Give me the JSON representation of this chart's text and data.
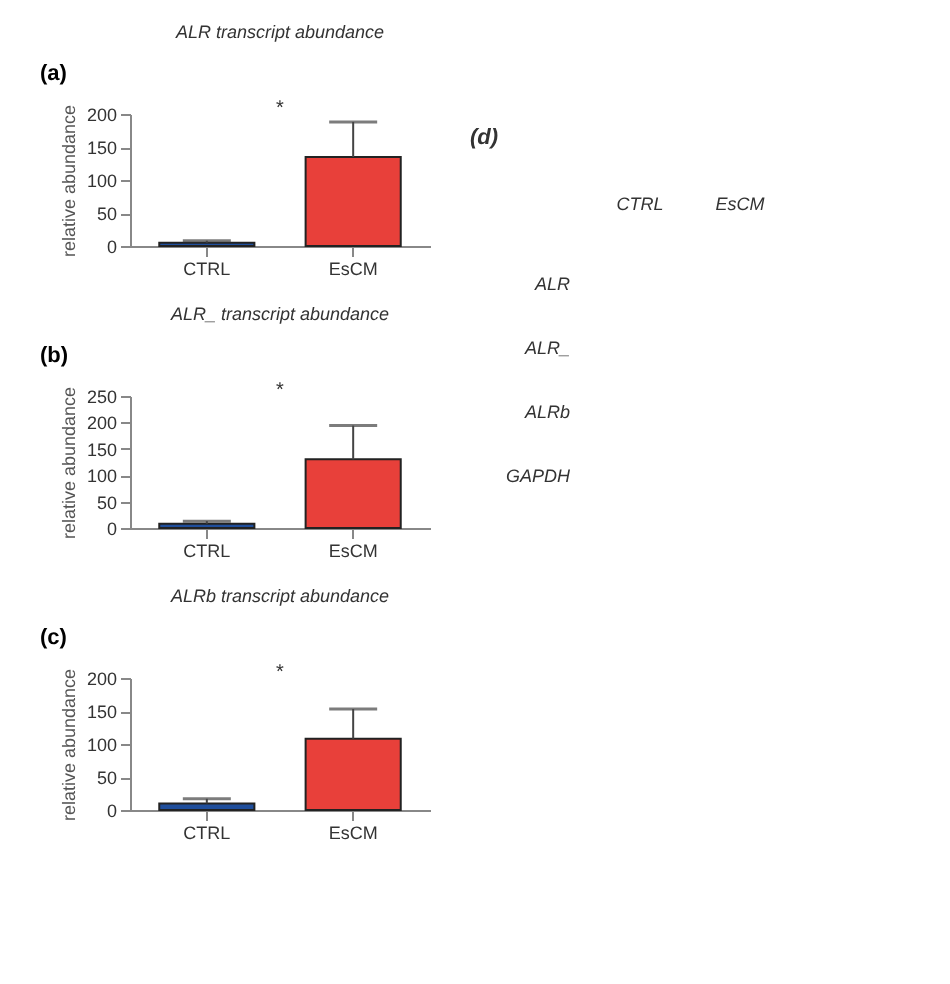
{
  "chart_data": [
    {
      "type": "bar",
      "title": "ALR transcript abundance",
      "ylabel": "relative abundance",
      "categories": [
        "CTRL",
        "EsCM"
      ],
      "values": [
        5,
        135
      ],
      "colors": [
        "#1f4e9c",
        "#e8403a"
      ],
      "errors": [
        [
          5,
          8
        ],
        [
          135,
          188
        ]
      ],
      "ylim": [
        0,
        200
      ],
      "yticks": [
        0,
        50,
        100,
        150,
        200
      ],
      "annotations": [
        "(a)",
        "*"
      ]
    },
    {
      "type": "bar",
      "title": "ALR_ transcript abundance",
      "ylabel": "relative abundance",
      "categories": [
        "CTRL",
        "EsCM"
      ],
      "values": [
        8,
        130
      ],
      "colors": [
        "#1f4e9c",
        "#e8403a"
      ],
      "errors": [
        [
          8,
          13
        ],
        [
          130,
          194
        ]
      ],
      "ylim": [
        0,
        250
      ],
      "yticks": [
        0,
        50,
        100,
        150,
        200,
        250
      ],
      "annotations": [
        "(b)",
        "*"
      ]
    },
    {
      "type": "bar",
      "title": "ALRb transcript abundance",
      "ylabel": "relative abundance",
      "categories": [
        "CTRL",
        "EsCM"
      ],
      "values": [
        10,
        108
      ],
      "colors": [
        "#1f4e9c",
        "#e8403a"
      ],
      "errors": [
        [
          10,
          17
        ],
        [
          108,
          153
        ]
      ],
      "ylim": [
        0,
        200
      ],
      "yticks": [
        0,
        50,
        100,
        150,
        200
      ],
      "annotations": [
        "(c)",
        "*"
      ]
    },
    {
      "type": "other",
      "annotations": [
        "(d)",
        "CTRL",
        "EsCM",
        "ALR",
        "ALR_",
        "ALRb",
        "GAPDH"
      ]
    }
  ]
}
